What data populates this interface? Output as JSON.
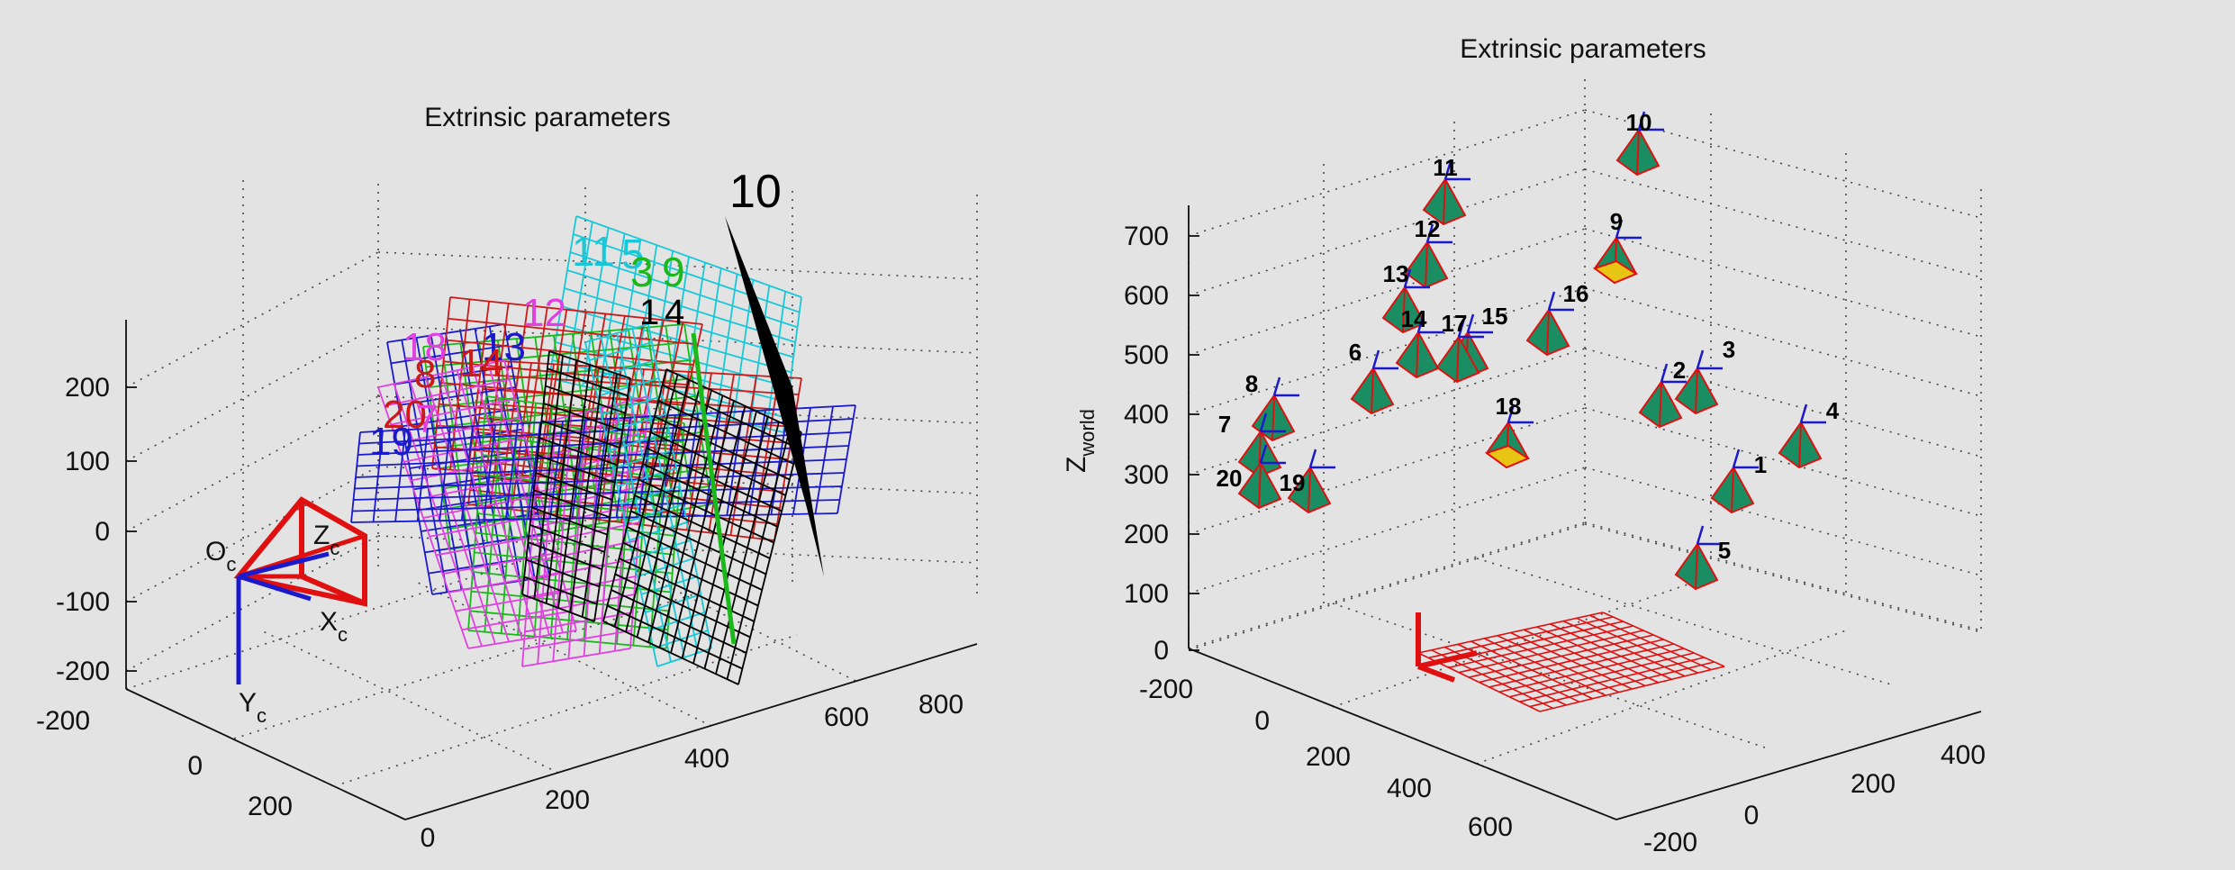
{
  "chart_data": [
    {
      "type": "scatter",
      "view": "camera-centered",
      "title": "Extrinsic parameters",
      "axes": {
        "x_ticks": [
          "-200",
          "0",
          "200"
        ],
        "y_ticks": [
          "0",
          "200",
          "400",
          "600",
          "800"
        ],
        "z_ticks": [
          "200",
          "100",
          "0",
          "-100",
          "-200"
        ]
      },
      "camera_frame": {
        "origin_label": "O",
        "origin_sub": "c",
        "z_label": "Z",
        "z_sub": "c",
        "x_label": "X",
        "x_sub": "c",
        "y_label": "Y",
        "y_sub": "c"
      },
      "grid": true,
      "series": [
        {
          "label": "10",
          "color": "#000000"
        },
        {
          "label": "11",
          "color": "#19c8d8"
        },
        {
          "label": "5",
          "color": "#19c8d8"
        },
        {
          "label": "3",
          "color": "#1ab81a"
        },
        {
          "label": "9",
          "color": "#1ab81a"
        },
        {
          "label": "1",
          "color": "#000000"
        },
        {
          "label": "4",
          "color": "#000000"
        },
        {
          "label": "12",
          "color": "#e040e0"
        },
        {
          "label": "18",
          "color": "#e040e0"
        },
        {
          "label": "13",
          "color": "#1a1acc"
        },
        {
          "label": "14",
          "color": "#cc1a1a"
        },
        {
          "label": "8",
          "color": "#cc1a1a"
        },
        {
          "label": "20",
          "color": "#cc1a1a"
        },
        {
          "label": "7",
          "color": "#e040e0"
        },
        {
          "label": "19",
          "color": "#1a1acc"
        }
      ]
    },
    {
      "type": "scatter",
      "view": "world-centered",
      "title": "Extrinsic parameters",
      "zlabel": "Z",
      "zlabel_sub": "world",
      "axes": {
        "z_ticks": [
          "700",
          "600",
          "500",
          "400",
          "300",
          "200",
          "100",
          "0"
        ],
        "x_ticks": [
          "-200",
          "0",
          "200",
          "400",
          "600"
        ],
        "y_ticks": [
          "-200",
          "0",
          "200",
          "400"
        ]
      },
      "grid": true,
      "cameras": [
        {
          "label": "10"
        },
        {
          "label": "11"
        },
        {
          "label": "9"
        },
        {
          "label": "12"
        },
        {
          "label": "13"
        },
        {
          "label": "16"
        },
        {
          "label": "14"
        },
        {
          "label": "15"
        },
        {
          "label": "17"
        },
        {
          "label": "6"
        },
        {
          "label": "2"
        },
        {
          "label": "3"
        },
        {
          "label": "8"
        },
        {
          "label": "18"
        },
        {
          "label": "4"
        },
        {
          "label": "7"
        },
        {
          "label": "20"
        },
        {
          "label": "19"
        },
        {
          "label": "1"
        },
        {
          "label": "5"
        }
      ]
    }
  ]
}
